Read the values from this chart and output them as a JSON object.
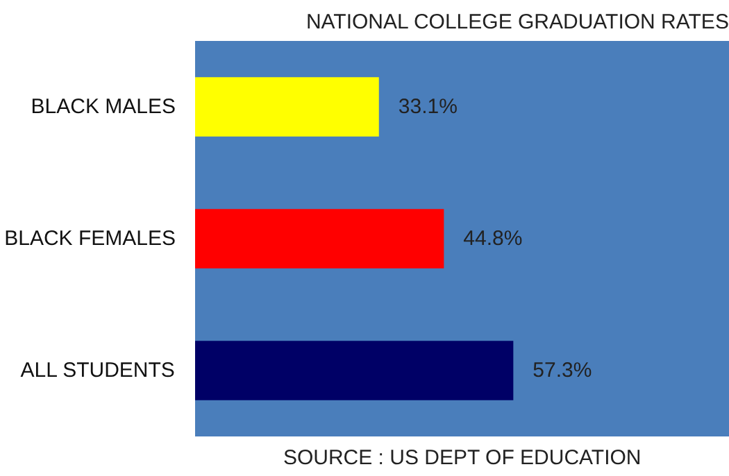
{
  "chart_data": {
    "type": "bar",
    "orientation": "horizontal",
    "tick_labels": "y",
    "title": "NATIONAL COLLEGE GRADUATION RATES",
    "categories": [
      "BLACK MALES",
      "BLACK FEMALES",
      "ALL STUDENTS"
    ],
    "values": [
      33.1,
      44.8,
      57.3
    ],
    "colors": [
      "#ffff00",
      "#ff0000",
      "#000066"
    ],
    "value_labels": [
      "33.1%",
      "44.8%",
      "57.3%"
    ],
    "annotations": [
      "SOURCE : US DEPT OF EDUCATION"
    ],
    "grid": false
  }
}
